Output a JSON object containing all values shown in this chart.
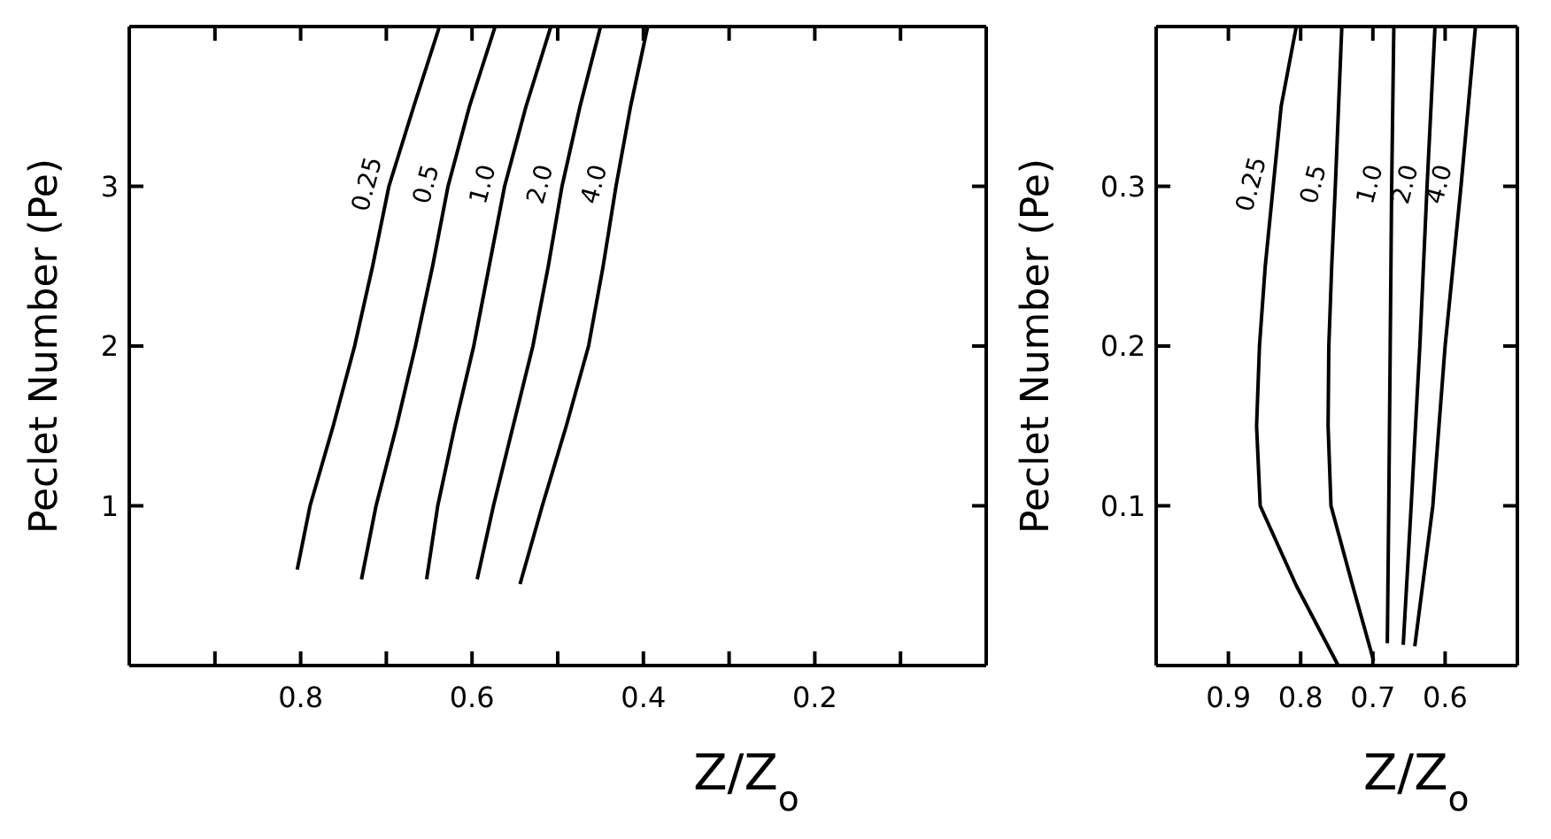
{
  "chart_data": [
    {
      "type": "line",
      "xlabel": "Z/Z$_{o}$",
      "ylabel": "Peclet Number (Pe)",
      "xlim": [
        1,
        0
      ],
      "ylim": [
        0,
        4
      ],
      "xticks": [
        {
          "value": 0.9,
          "label": null
        },
        0.8,
        {
          "value": 0.7,
          "label": null
        },
        0.6,
        {
          "value": 0.5,
          "label": null
        },
        0.4,
        {
          "value": 0.3,
          "label": null
        },
        0.2,
        {
          "value": 0.1,
          "label": null
        }
      ],
      "yticks": [
        1,
        2,
        3
      ],
      "marker": "none",
      "line_style": "solid",
      "series": [
        {
          "name": "0.25",
          "color": "#000000",
          "x": [
            0.804,
            0.789,
            0.762,
            0.737,
            0.716,
            0.697,
            0.668,
            0.638
          ],
          "values": [
            0.6,
            1,
            1.5,
            2,
            2.5,
            3,
            3.5,
            4
          ]
        },
        {
          "name": "0.5",
          "color": "#000000",
          "x": [
            0.729,
            0.712,
            0.688,
            0.666,
            0.646,
            0.628,
            0.603,
            0.573
          ],
          "values": [
            0.54,
            1,
            1.5,
            2,
            2.5,
            3,
            3.5,
            4
          ]
        },
        {
          "name": "1.0",
          "color": "#000000",
          "x": [
            0.653,
            0.64,
            0.62,
            0.598,
            0.58,
            0.562,
            0.537,
            0.508
          ],
          "values": [
            0.54,
            1,
            1.5,
            2,
            2.5,
            3,
            3.5,
            4
          ]
        },
        {
          "name": "2.0",
          "color": "#000000",
          "x": [
            0.594,
            0.575,
            0.552,
            0.529,
            0.511,
            0.495,
            0.474,
            0.45
          ],
          "values": [
            0.54,
            1,
            1.5,
            2,
            2.5,
            3,
            3.5,
            4
          ]
        },
        {
          "name": "4.0",
          "color": "#000000",
          "x": [
            0.544,
            0.518,
            0.49,
            0.464,
            0.447,
            0.432,
            0.415,
            0.395
          ],
          "values": [
            0.51,
            1,
            1.5,
            2,
            2.5,
            3,
            3.5,
            4
          ]
        }
      ]
    },
    {
      "type": "line",
      "xlabel": "Z/Z$_{o}$",
      "ylabel": "Peclet Number (Pe)",
      "xlim": [
        1,
        0.5
      ],
      "ylim": [
        0,
        0.4
      ],
      "xticks": [
        0.9,
        0.8,
        0.7,
        0.6
      ],
      "yticks": [
        0.1,
        0.2,
        0.3
      ],
      "marker": "none",
      "line_style": "solid",
      "series": [
        {
          "name": "0.25",
          "color": "#000000",
          "x": [
            0.748,
            0.806,
            0.856,
            0.861,
            0.857,
            0.849,
            0.838,
            0.827,
            0.806
          ],
          "values": [
            0,
            0.05,
            0.1,
            0.15,
            0.2,
            0.25,
            0.3,
            0.35,
            0.4
          ]
        },
        {
          "name": "0.5",
          "color": "#000000",
          "x": [
            0.699,
            0.728,
            0.758,
            0.762,
            0.761,
            0.757,
            0.752,
            0.743
          ],
          "values": [
            0.003,
            0.05,
            0.1,
            0.15,
            0.2,
            0.25,
            0.3,
            0.4
          ]
        },
        {
          "name": "1.0",
          "color": "#000000",
          "x": [
            0.68,
            0.678,
            0.676,
            0.674,
            0.671
          ],
          "values": [
            0.014,
            0.1,
            0.2,
            0.3,
            0.4
          ]
        },
        {
          "name": "2.0",
          "color": "#000000",
          "x": [
            0.658,
            0.647,
            0.635,
            0.625,
            0.614
          ],
          "values": [
            0.013,
            0.1,
            0.2,
            0.3,
            0.4
          ]
        },
        {
          "name": "4.0",
          "color": "#000000",
          "x": [
            0.642,
            0.617,
            0.6,
            0.578,
            0.558
          ],
          "values": [
            0.012,
            0.1,
            0.2,
            0.3,
            0.4
          ]
        }
      ]
    }
  ]
}
